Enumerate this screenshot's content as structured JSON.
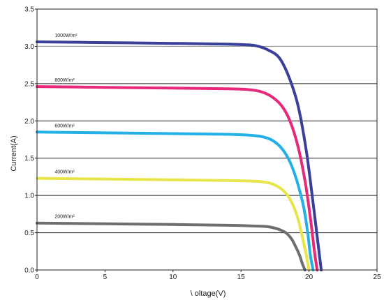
{
  "chart_data": {
    "type": "line",
    "title": "",
    "xlabel": "\\ oltage(V)",
    "ylabel": "Current(A)",
    "xlim": [
      0,
      25
    ],
    "ylim": [
      0,
      3.5
    ],
    "xticks": [
      "0",
      "5",
      "10",
      "15",
      "20",
      "25"
    ],
    "xtick_values": [
      0,
      5,
      10,
      15,
      20,
      25
    ],
    "yticks": [
      "0.0",
      "0.5",
      "1.0",
      "1.5",
      "2.0",
      "2.5",
      "3.0",
      "3.5"
    ],
    "ytick_values": [
      0,
      0.5,
      1.0,
      1.5,
      2.0,
      2.5,
      3.0,
      3.5
    ],
    "grid": "horizontal",
    "series": [
      {
        "name": "1000W/m²",
        "color": "#3a3f99",
        "x": [
          0,
          5,
          10,
          14,
          15.5,
          16.3,
          17,
          17.8,
          18.5,
          19.2,
          19.8,
          20.3,
          20.7,
          20.9
        ],
        "y": [
          3.06,
          3.05,
          3.04,
          3.03,
          3.02,
          3.0,
          2.95,
          2.85,
          2.6,
          2.2,
          1.6,
          0.9,
          0.3,
          0.0
        ]
      },
      {
        "name": "800W/m²",
        "color": "#e8287a",
        "x": [
          0,
          5,
          10,
          14,
          15.5,
          16.5,
          17.3,
          18,
          18.6,
          19.2,
          19.7,
          20.1,
          20.4,
          20.6
        ],
        "y": [
          2.46,
          2.45,
          2.44,
          2.43,
          2.42,
          2.39,
          2.32,
          2.2,
          2.0,
          1.65,
          1.2,
          0.7,
          0.25,
          0.0
        ]
      },
      {
        "name": "600W/m²",
        "color": "#24b0e6",
        "x": [
          0,
          5,
          10,
          14,
          15.5,
          16.5,
          17.3,
          18,
          18.6,
          19.1,
          19.6,
          19.9,
          20.1,
          20.3
        ],
        "y": [
          1.85,
          1.84,
          1.83,
          1.82,
          1.81,
          1.79,
          1.74,
          1.63,
          1.45,
          1.2,
          0.85,
          0.5,
          0.2,
          0.0
        ]
      },
      {
        "name": "400W/m²",
        "color": "#e8e54a",
        "x": [
          0,
          5,
          10,
          14,
          16,
          17,
          17.7,
          18.3,
          18.8,
          19.2,
          19.5,
          19.8,
          20.0
        ],
        "y": [
          1.23,
          1.22,
          1.21,
          1.2,
          1.19,
          1.17,
          1.12,
          1.03,
          0.88,
          0.68,
          0.45,
          0.2,
          0.0
        ]
      },
      {
        "name": "200W/m²",
        "color": "#6d6e71",
        "x": [
          0,
          5,
          10,
          14,
          16,
          17,
          17.7,
          18.3,
          18.7,
          19.0,
          19.3,
          19.5,
          19.7
        ],
        "y": [
          0.63,
          0.62,
          0.61,
          0.6,
          0.59,
          0.58,
          0.55,
          0.5,
          0.42,
          0.32,
          0.2,
          0.09,
          0.0
        ]
      }
    ]
  }
}
